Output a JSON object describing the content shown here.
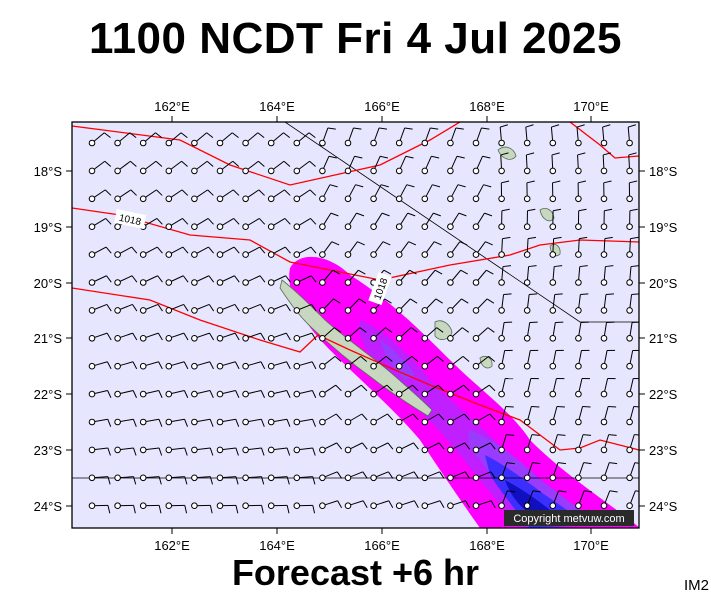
{
  "title": "1100 NCDT Fri 4 Jul 2025",
  "subtitle": "Forecast +6 hr",
  "panel_id": "IM2",
  "copyright": "Copyright metvuw.com",
  "axes": {
    "lon_labels": [
      "162°E",
      "164°E",
      "166°E",
      "168°E",
      "170°E"
    ],
    "lat_labels": [
      "18°S",
      "19°S",
      "20°S",
      "21°S",
      "22°S",
      "23°S",
      "24°S"
    ]
  },
  "isobar_labels": [
    "1018",
    "1018"
  ],
  "colors": {
    "ocean": "#e6e6ff",
    "isobar": "#ff0000",
    "rain_light": "#ff00ff",
    "rain_moderate": "#9a3cff",
    "rain_heavy": "#3a2fff",
    "rain_very_heavy": "#1010c0",
    "land": "#c8d8c0",
    "barb": "#000000"
  }
}
